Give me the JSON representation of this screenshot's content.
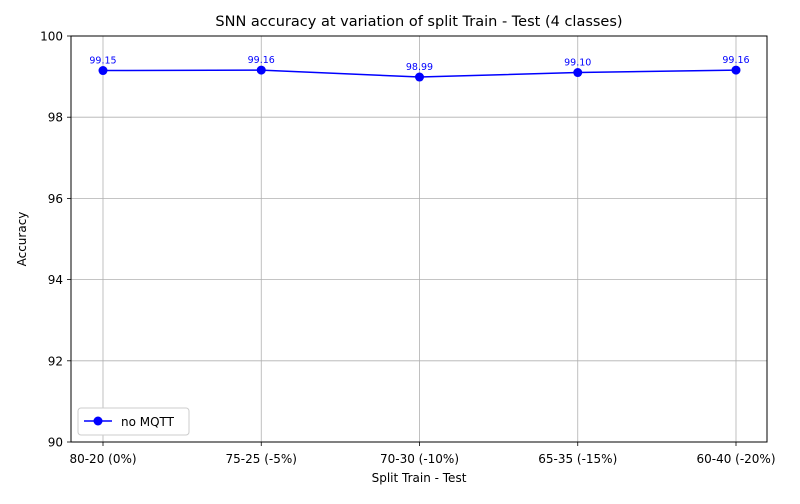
{
  "chart_data": {
    "type": "line",
    "title": "SNN accuracy at variation of split Train - Test (4 classes)",
    "xlabel": "Split Train - Test",
    "ylabel": "Accuracy",
    "categories": [
      "80-20 (0%)",
      "75-25 (-5%)",
      "70-30 (-10%)",
      "65-35 (-15%)",
      "60-40 (-20%)"
    ],
    "ylim": [
      90,
      100
    ],
    "yticks": [
      "90",
      "92",
      "94",
      "96",
      "98",
      "100"
    ],
    "grid": true,
    "legend_position": "lower-left",
    "series": [
      {
        "name": "no MQTT",
        "color": "#0000ff",
        "marker": "circle",
        "values": [
          99.15,
          99.16,
          98.99,
          99.1,
          99.16
        ],
        "labels": [
          "99.15",
          "99.16",
          "98.99",
          "99.10",
          "99.16"
        ]
      }
    ]
  }
}
